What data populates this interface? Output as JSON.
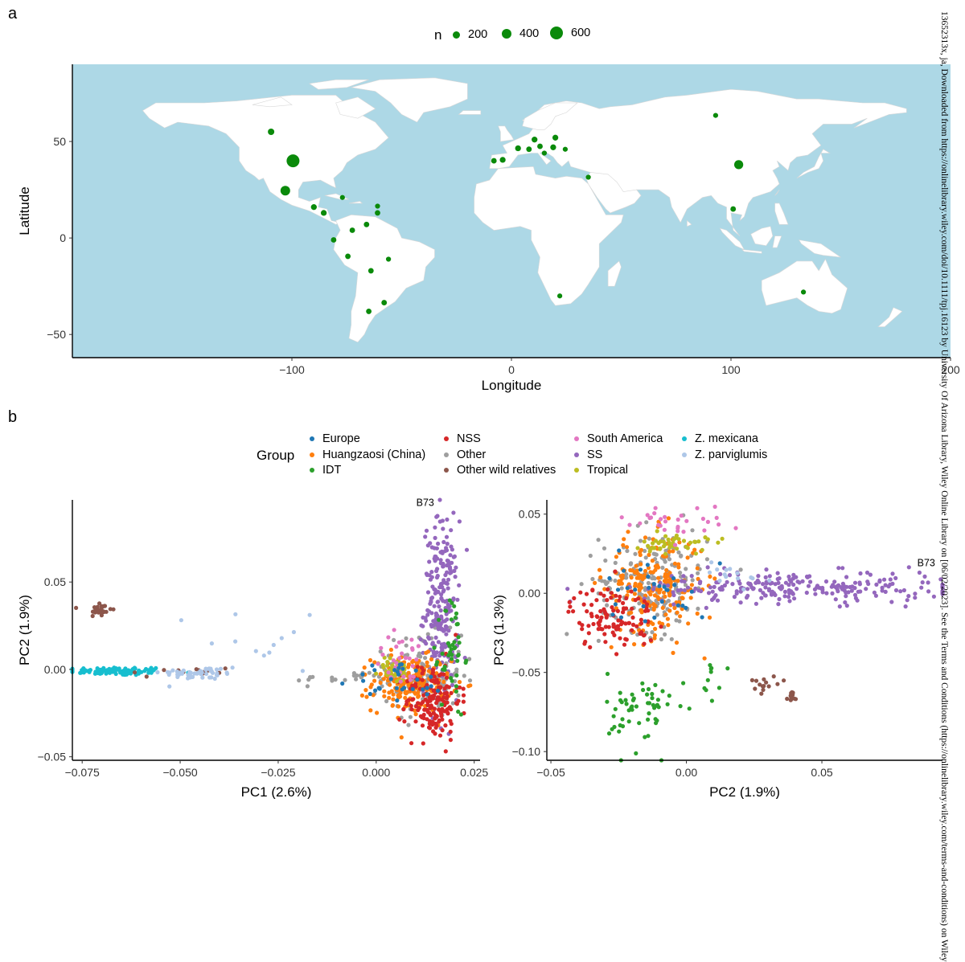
{
  "panels": {
    "a": "a",
    "b": "b"
  },
  "side_note": "13652313x, ja, Downloaded from https://onlinelibrary.wiley.com/doi/10.1111/tpj.16123 by University Of Arizona Library, Wiley Online Library on [06/02/2023]. See the Terms and Conditions (https://onlinelibrary.wiley.com/terms-and-conditions) on Wiley",
  "colors": {
    "ocean": "#add8e6",
    "land": "#ffffff",
    "dot": "#0a8a0a",
    "Europe": "#1f77b4",
    "Huangzaosi": "#ff7f0e",
    "IDT": "#2ca02c",
    "NSS": "#d62728",
    "Other": "#9e9e9e",
    "OtherWild": "#8c564b",
    "SouthAmerica": "#e377c2",
    "SS": "#9467bd",
    "Tropical": "#bcbd22",
    "Mexicana": "#17becf",
    "Parviglumis": "#aec7e8"
  },
  "size_legend": {
    "title": "n",
    "entries": [
      "200",
      "400",
      "600"
    ]
  },
  "group_legend": {
    "title": "Group",
    "entries": [
      {
        "label": "Europe",
        "key": "Europe"
      },
      {
        "label": "Huangzaosi (China)",
        "key": "Huangzaosi"
      },
      {
        "label": "IDT",
        "key": "IDT"
      },
      {
        "label": "NSS",
        "key": "NSS"
      },
      {
        "label": "Other",
        "key": "Other"
      },
      {
        "label": "Other wild relatives",
        "key": "OtherWild"
      },
      {
        "label": "South America",
        "key": "SouthAmerica"
      },
      {
        "label": "SS",
        "key": "SS"
      },
      {
        "label": "Tropical",
        "key": "Tropical"
      },
      {
        "label": "Z. mexicana",
        "key": "Mexicana"
      },
      {
        "label": "Z. parviglumis",
        "key": "Parviglumis"
      }
    ]
  },
  "chart_data": [
    {
      "type": "scatter",
      "kind": "map",
      "xlabel": "Longitude",
      "ylabel": "Latitude",
      "xlim": [
        -200,
        200
      ],
      "ylim": [
        -62,
        90
      ],
      "xticks": [
        -100,
        0,
        100,
        200
      ],
      "xtick_labels": [
        "−100",
        "0",
        "100",
        "200"
      ],
      "yticks": [
        -50,
        0,
        50
      ],
      "ytick_labels": [
        "−50",
        "0",
        "50"
      ],
      "size_legend_values": [
        200,
        400,
        600
      ],
      "points": [
        {
          "lon": -99.5,
          "lat": 40,
          "n": 600
        },
        {
          "lon": -103,
          "lat": 24.5,
          "n": 250
        },
        {
          "lon": 103.5,
          "lat": 38,
          "n": 200
        },
        {
          "lon": -109.5,
          "lat": 55,
          "n": 50
        },
        {
          "lon": -90,
          "lat": 16,
          "n": 30
        },
        {
          "lon": -85.5,
          "lat": 13,
          "n": 30
        },
        {
          "lon": -77,
          "lat": 21,
          "n": 10
        },
        {
          "lon": -61,
          "lat": 16.5,
          "n": 10
        },
        {
          "lon": -61,
          "lat": 13,
          "n": 20
        },
        {
          "lon": -66,
          "lat": 7,
          "n": 20
        },
        {
          "lon": -72.5,
          "lat": 4,
          "n": 20
        },
        {
          "lon": -81,
          "lat": -1,
          "n": 20
        },
        {
          "lon": -74.5,
          "lat": -9.5,
          "n": 20
        },
        {
          "lon": -56,
          "lat": -11,
          "n": 10
        },
        {
          "lon": -64,
          "lat": -17,
          "n": 20
        },
        {
          "lon": -58,
          "lat": -33.5,
          "n": 20
        },
        {
          "lon": -65,
          "lat": -38,
          "n": 20
        },
        {
          "lon": -8,
          "lat": 40,
          "n": 20
        },
        {
          "lon": -4,
          "lat": 40.5,
          "n": 30
        },
        {
          "lon": 3,
          "lat": 46.5,
          "n": 30
        },
        {
          "lon": 8,
          "lat": 46,
          "n": 20
        },
        {
          "lon": 10.5,
          "lat": 51,
          "n": 30
        },
        {
          "lon": 13,
          "lat": 47.5,
          "n": 20
        },
        {
          "lon": 15,
          "lat": 44,
          "n": 10
        },
        {
          "lon": 19,
          "lat": 47,
          "n": 30
        },
        {
          "lon": 20,
          "lat": 52,
          "n": 30
        },
        {
          "lon": 24.5,
          "lat": 46,
          "n": 10
        },
        {
          "lon": 35,
          "lat": 31.5,
          "n": 10
        },
        {
          "lon": 93,
          "lat": 63.5,
          "n": 10
        },
        {
          "lon": 101,
          "lat": 15,
          "n": 20
        },
        {
          "lon": 133,
          "lat": -28,
          "n": 10
        },
        {
          "lon": 22,
          "lat": -30,
          "n": 10
        }
      ]
    },
    {
      "type": "scatter",
      "xlabel": "PC1 (2.6%)",
      "ylabel": "PC2 (1.9%)",
      "xlim": [
        -0.0775,
        0.0265
      ],
      "ylim": [
        -0.052,
        0.097
      ],
      "xticks": [
        -0.075,
        -0.05,
        -0.025,
        0,
        0.025
      ],
      "xtick_labels": [
        "−0.075",
        "−0.050",
        "−0.025",
        "0.000",
        "0.025"
      ],
      "yticks": [
        -0.05,
        0,
        0.05
      ],
      "ytick_labels": [
        "−0.05",
        "0.00",
        "0.05"
      ],
      "annotation": {
        "text": "B73",
        "x": 0.0125,
        "y": 0.0935
      },
      "clusters": [
        {
          "group": "Mexicana",
          "n": 90,
          "center": [
            -0.066,
            -0.001
          ],
          "spread": [
            0.0065,
            0.0012
          ]
        },
        {
          "group": "OtherWild",
          "n": 26,
          "center": [
            -0.0705,
            0.034
          ],
          "spread": [
            0.0015,
            0.0025
          ]
        },
        {
          "group": "OtherWild",
          "n": 14,
          "center": [
            -0.05,
            -0.0015
          ],
          "spread": [
            0.008,
            0.0015
          ]
        },
        {
          "group": "Parviglumis",
          "n": 50,
          "center": [
            -0.045,
            -0.0022
          ],
          "spread": [
            0.005,
            0.0018
          ]
        },
        {
          "group": "Parviglumis",
          "n": 14,
          "center": [
            -0.03,
            0.016
          ],
          "spread": [
            0.008,
            0.012
          ]
        },
        {
          "group": "Other",
          "n": 28,
          "center": [
            -0.005,
            -0.005
          ],
          "spread": [
            0.008,
            0.002
          ]
        },
        {
          "group": "Other",
          "n": 130,
          "center": [
            0.012,
            -0.004
          ],
          "spread": [
            0.005,
            0.012
          ]
        },
        {
          "group": "SS",
          "n": 230,
          "center": [
            0.0165,
            0.035
          ],
          "spread": [
            0.0022,
            0.025
          ]
        },
        {
          "group": "Huangzaosi",
          "n": 200,
          "center": [
            0.009,
            -0.008
          ],
          "spread": [
            0.005,
            0.008
          ]
        },
        {
          "group": "NSS",
          "n": 170,
          "center": [
            0.0145,
            -0.018
          ],
          "spread": [
            0.0035,
            0.011
          ]
        },
        {
          "group": "IDT",
          "n": 45,
          "center": [
            0.0195,
            0.008
          ],
          "spread": [
            0.0015,
            0.018
          ]
        },
        {
          "group": "Tropical",
          "n": 45,
          "center": [
            0.0045,
            -0.0005
          ],
          "spread": [
            0.002,
            0.0035
          ]
        },
        {
          "group": "SouthAmerica",
          "n": 30,
          "center": [
            0.007,
            0.006
          ],
          "spread": [
            0.004,
            0.008
          ]
        },
        {
          "group": "Europe",
          "n": 30,
          "center": [
            0.006,
            -0.007
          ],
          "spread": [
            0.006,
            0.006
          ]
        }
      ]
    },
    {
      "type": "scatter",
      "xlabel": "PC2 (1.9%)",
      "ylabel": "PC3 (1.3%)",
      "xlim": [
        -0.0515,
        0.0945
      ],
      "ylim": [
        -0.1055,
        0.059
      ],
      "xticks": [
        -0.05,
        0,
        0.05
      ],
      "xtick_labels": [
        "−0.05",
        "0.00",
        "0.05"
      ],
      "yticks": [
        -0.1,
        -0.05,
        0,
        0.05
      ],
      "ytick_labels": [
        "−0.10",
        "−0.05",
        "0.00",
        "0.05"
      ],
      "annotation": {
        "text": "B73",
        "x": 0.0885,
        "y": 0.017
      },
      "clusters": [
        {
          "group": "Other",
          "n": 190,
          "center": [
            -0.012,
            0.008
          ],
          "spread": [
            0.01,
            0.016
          ]
        },
        {
          "group": "Huangzaosi",
          "n": 210,
          "center": [
            -0.012,
            0.005
          ],
          "spread": [
            0.009,
            0.016
          ]
        },
        {
          "group": "SS",
          "n": 240,
          "center": [
            0.04,
            0.004
          ],
          "spread": [
            0.028,
            0.005
          ]
        },
        {
          "group": "NSS",
          "n": 110,
          "center": [
            -0.027,
            -0.015
          ],
          "spread": [
            0.008,
            0.01
          ]
        },
        {
          "group": "IDT",
          "n": 55,
          "center": [
            -0.017,
            -0.075
          ],
          "spread": [
            0.006,
            0.013
          ]
        },
        {
          "group": "IDT",
          "n": 12,
          "center": [
            0.006,
            -0.055
          ],
          "spread": [
            0.006,
            0.01
          ]
        },
        {
          "group": "Tropical",
          "n": 45,
          "center": [
            -0.004,
            0.031
          ],
          "spread": [
            0.006,
            0.003
          ]
        },
        {
          "group": "SouthAmerica",
          "n": 30,
          "center": [
            -0.005,
            0.045
          ],
          "spread": [
            0.01,
            0.005
          ]
        },
        {
          "group": "OtherWild",
          "n": 14,
          "center": [
            0.03,
            -0.056
          ],
          "spread": [
            0.003,
            0.003
          ]
        },
        {
          "group": "OtherWild",
          "n": 14,
          "center": [
            0.039,
            -0.065
          ],
          "spread": [
            0.001,
            0.0015
          ]
        },
        {
          "group": "Europe",
          "n": 30,
          "center": [
            -0.012,
            0.005
          ],
          "spread": [
            0.01,
            0.012
          ]
        },
        {
          "group": "Parviglumis",
          "n": 14,
          "center": [
            0.015,
            0.012
          ],
          "spread": [
            0.008,
            0.006
          ]
        }
      ]
    }
  ]
}
